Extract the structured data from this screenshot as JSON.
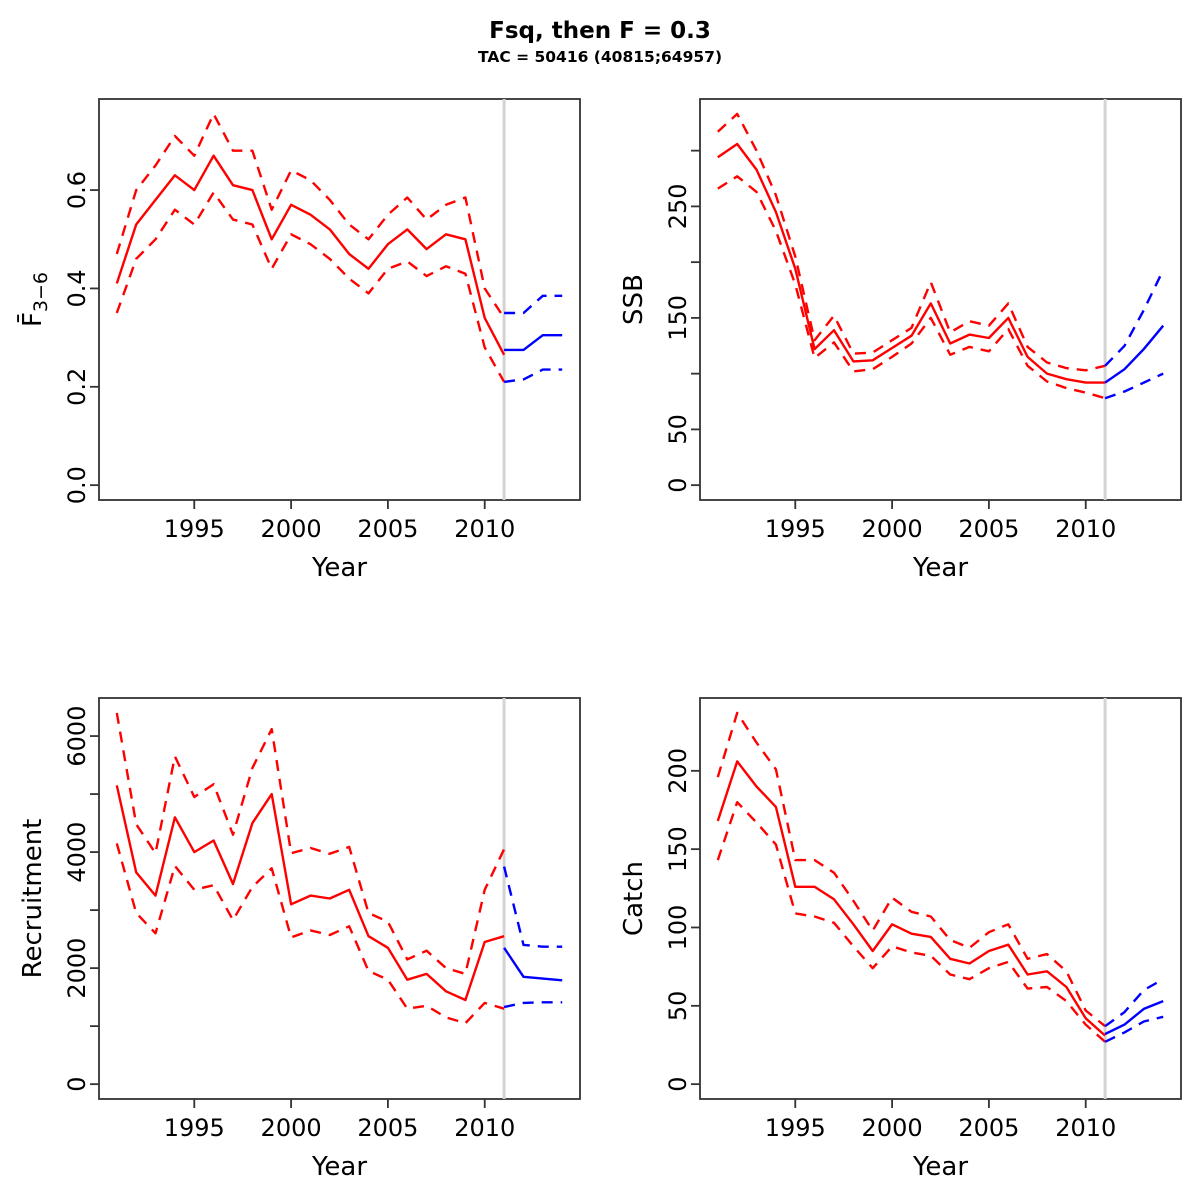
{
  "header": {
    "title": "Fsq, then F = 0.3",
    "subtitle": "TAC = 50416 (40815;64957)"
  },
  "colors": {
    "history": "#ff0000",
    "projection": "#0000ff",
    "divider": "#d3d3d3",
    "axis": "#333333"
  },
  "chart_data": [
    {
      "type": "line",
      "panel": "fishing-mortality",
      "ylabel": "F̄",
      "ylabel_sub": "3−6",
      "xlabel": "Year",
      "xrange": [
        1991,
        2014
      ],
      "ylim": [
        0,
        0.755
      ],
      "divider_x": 2011,
      "xticks": [
        {
          "v": 1995,
          "label": "1995"
        },
        {
          "v": 2000,
          "label": "2000"
        },
        {
          "v": 2005,
          "label": "2005"
        },
        {
          "v": 2010,
          "label": "2010"
        }
      ],
      "yticks": [
        {
          "v": 0,
          "label": "0.0"
        },
        {
          "v": 0.2,
          "label": "0.2"
        },
        {
          "v": 0.4,
          "label": "0.4"
        },
        {
          "v": 0.6,
          "label": "0.6"
        }
      ],
      "x_hist": [
        1991,
        1992,
        1993,
        1994,
        1995,
        1996,
        1997,
        1998,
        1999,
        2000,
        2001,
        2002,
        2003,
        2004,
        2005,
        2006,
        2007,
        2008,
        2009,
        2010,
        2011
      ],
      "hist": {
        "median": [
          0.41,
          0.53,
          0.58,
          0.63,
          0.6,
          0.67,
          0.61,
          0.6,
          0.5,
          0.57,
          0.55,
          0.52,
          0.47,
          0.44,
          0.49,
          0.52,
          0.48,
          0.51,
          0.5,
          0.34,
          0.265
        ],
        "upper": [
          0.47,
          0.6,
          0.65,
          0.71,
          0.67,
          0.755,
          0.68,
          0.68,
          0.56,
          0.64,
          0.62,
          0.58,
          0.53,
          0.5,
          0.55,
          0.585,
          0.54,
          0.57,
          0.585,
          0.4,
          0.34
        ],
        "lower": [
          0.35,
          0.46,
          0.5,
          0.56,
          0.53,
          0.595,
          0.54,
          0.53,
          0.44,
          0.51,
          0.49,
          0.46,
          0.42,
          0.39,
          0.44,
          0.455,
          0.425,
          0.445,
          0.43,
          0.28,
          0.21
        ]
      },
      "x_proj": [
        2011,
        2012,
        2013,
        2014
      ],
      "proj": {
        "median": [
          0.275,
          0.275,
          0.305,
          0.305
        ],
        "upper": [
          0.35,
          0.35,
          0.385,
          0.385
        ],
        "lower": [
          0.21,
          0.215,
          0.235,
          0.235
        ]
      }
    },
    {
      "type": "line",
      "panel": "ssb",
      "ylabel": "SSB",
      "ylabel_sub": "",
      "xlabel": "Year",
      "xrange": [
        1991,
        2014
      ],
      "ylim": [
        0,
        333
      ],
      "divider_x": 2011,
      "xticks": [
        {
          "v": 1995,
          "label": "1995"
        },
        {
          "v": 2000,
          "label": "2000"
        },
        {
          "v": 2005,
          "label": "2005"
        },
        {
          "v": 2010,
          "label": "2010"
        }
      ],
      "yticks": [
        {
          "v": 0,
          "label": "0"
        },
        {
          "v": 50,
          "label": "50"
        },
        {
          "v": 100,
          "label": ""
        },
        {
          "v": 150,
          "label": "150"
        },
        {
          "v": 200,
          "label": ""
        },
        {
          "v": 250,
          "label": "250"
        },
        {
          "v": 300,
          "label": ""
        }
      ],
      "x_hist": [
        1991,
        1992,
        1993,
        1994,
        1995,
        1996,
        1997,
        1998,
        1999,
        2000,
        2001,
        2002,
        2003,
        2004,
        2005,
        2006,
        2007,
        2008,
        2009,
        2010,
        2011
      ],
      "hist": {
        "median": [
          294,
          306,
          283,
          245,
          194,
          122,
          139,
          111,
          112,
          123,
          134,
          163,
          127,
          135,
          132,
          150,
          115,
          100,
          95,
          92,
          92
        ],
        "upper": [
          317,
          333,
          300,
          260,
          205,
          130,
          152,
          118,
          119,
          130,
          141,
          182,
          137,
          147,
          143,
          163,
          124,
          110,
          105,
          103,
          107
        ],
        "lower": [
          266,
          277,
          263,
          228,
          180,
          114,
          128,
          102,
          104,
          115,
          127,
          150,
          117,
          124,
          120,
          140,
          107,
          93,
          87,
          83,
          78
        ]
      },
      "x_proj": [
        2011,
        2012,
        2013,
        2014
      ],
      "proj": {
        "median": [
          92,
          104,
          122,
          143
        ],
        "upper": [
          107,
          125,
          157,
          193
        ],
        "lower": [
          78,
          84,
          92,
          100
        ]
      }
    },
    {
      "type": "line",
      "panel": "recruitment",
      "ylabel": "Recruitment",
      "ylabel_sub": "",
      "xlabel": "Year",
      "xrange": [
        1991,
        2014
      ],
      "ylim": [
        0,
        6400
      ],
      "divider_x": 2011,
      "xticks": [
        {
          "v": 1995,
          "label": "1995"
        },
        {
          "v": 2000,
          "label": "2000"
        },
        {
          "v": 2005,
          "label": "2005"
        },
        {
          "v": 2010,
          "label": "2010"
        }
      ],
      "yticks": [
        {
          "v": 0,
          "label": "0"
        },
        {
          "v": 1000,
          "label": ""
        },
        {
          "v": 2000,
          "label": "2000"
        },
        {
          "v": 3000,
          "label": ""
        },
        {
          "v": 4000,
          "label": "4000"
        },
        {
          "v": 5000,
          "label": ""
        },
        {
          "v": 6000,
          "label": "6000"
        }
      ],
      "x_hist": [
        1991,
        1992,
        1993,
        1994,
        1995,
        1996,
        1997,
        1998,
        1999,
        2000,
        2001,
        2002,
        2003,
        2004,
        2005,
        2006,
        2007,
        2008,
        2009,
        2010,
        2011
      ],
      "hist": {
        "median": [
          5150,
          3650,
          3250,
          4600,
          4000,
          4200,
          3450,
          4500,
          5000,
          3100,
          3250,
          3200,
          3350,
          2550,
          2350,
          1800,
          1900,
          1600,
          1450,
          2450,
          2550
        ],
        "upper": [
          6400,
          4480,
          3980,
          5650,
          4950,
          5170,
          4300,
          5450,
          6120,
          3980,
          4070,
          3970,
          4090,
          2950,
          2800,
          2150,
          2300,
          2000,
          1900,
          3350,
          4050
        ],
        "lower": [
          4150,
          2950,
          2600,
          3760,
          3350,
          3430,
          2830,
          3400,
          3720,
          2530,
          2650,
          2570,
          2720,
          1950,
          1800,
          1300,
          1350,
          1150,
          1050,
          1400,
          1300
        ]
      },
      "x_proj": [
        2011,
        2012,
        2013,
        2014
      ],
      "proj": {
        "median": [
          2350,
          1850,
          1820,
          1790
        ],
        "upper": [
          3750,
          2400,
          2370,
          2370
        ],
        "lower": [
          1330,
          1400,
          1410,
          1410
        ]
      }
    },
    {
      "type": "line",
      "panel": "catch",
      "ylabel": "Catch",
      "ylabel_sub": "",
      "xlabel": "Year",
      "xrange": [
        1991,
        2014
      ],
      "ylim": [
        0,
        237
      ],
      "divider_x": 2011,
      "xticks": [
        {
          "v": 1995,
          "label": "1995"
        },
        {
          "v": 2000,
          "label": "2000"
        },
        {
          "v": 2005,
          "label": "2005"
        },
        {
          "v": 2010,
          "label": "2010"
        }
      ],
      "yticks": [
        {
          "v": 0,
          "label": "0"
        },
        {
          "v": 50,
          "label": "50"
        },
        {
          "v": 100,
          "label": "100"
        },
        {
          "v": 150,
          "label": "150"
        },
        {
          "v": 200,
          "label": "200"
        }
      ],
      "x_hist": [
        1991,
        1992,
        1993,
        1994,
        1995,
        1996,
        1997,
        1998,
        1999,
        2000,
        2001,
        2002,
        2003,
        2004,
        2005,
        2006,
        2007,
        2008,
        2009,
        2010,
        2011
      ],
      "hist": {
        "median": [
          168,
          206,
          190,
          177,
          126,
          126,
          118,
          102,
          85,
          102,
          96,
          94,
          80,
          77,
          85,
          89,
          70,
          72,
          62,
          42,
          31
        ],
        "upper": [
          196,
          237,
          218,
          201,
          143,
          143,
          135,
          117,
          98,
          119,
          110,
          107,
          92,
          87,
          97,
          102,
          80,
          83,
          72,
          47,
          37
        ],
        "lower": [
          143,
          180,
          167,
          153,
          109,
          107,
          103,
          88,
          74,
          88,
          84,
          82,
          70,
          67,
          74,
          78,
          61,
          62,
          53,
          38,
          27
        ]
      },
      "x_proj": [
        2011,
        2012,
        2013,
        2014
      ],
      "proj": {
        "median": [
          32,
          38,
          48,
          53
        ],
        "upper": [
          37,
          46,
          60,
          67
        ],
        "lower": [
          27,
          33,
          40,
          43
        ]
      }
    }
  ]
}
